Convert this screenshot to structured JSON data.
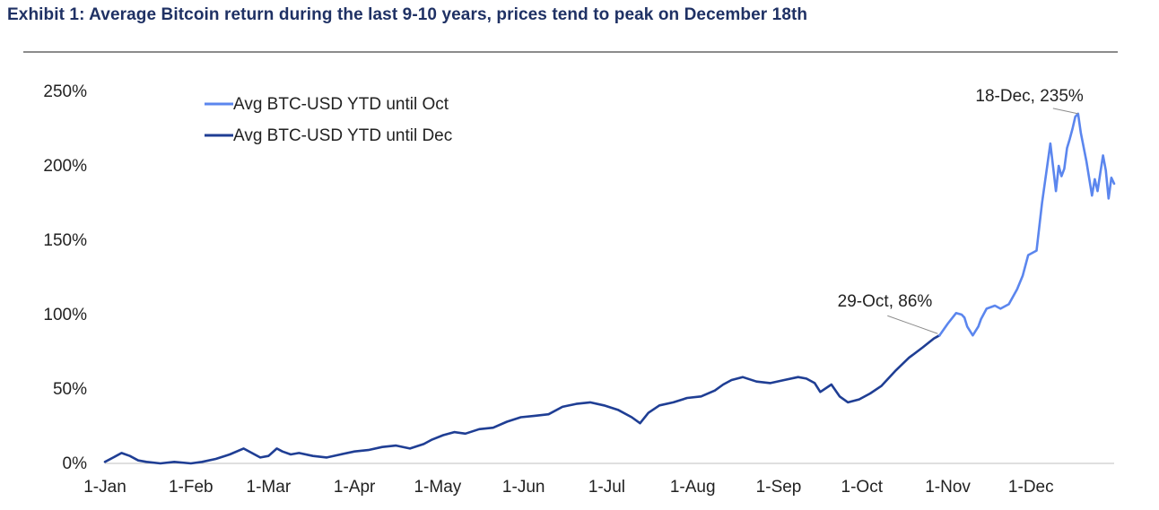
{
  "header": {
    "title": "Exhibit 1: Average Bitcoin return during the last 9-10 years, prices tend to peak on December 18th"
  },
  "chart_data": {
    "type": "line",
    "title": "Exhibit 1: Average Bitcoin return during the last 9-10 years, prices tend to peak on December 18th",
    "xlabel": "",
    "ylabel": "",
    "ylim": [
      0,
      250
    ],
    "y_ticks": [
      0,
      50,
      100,
      150,
      200,
      250
    ],
    "y_tick_labels": [
      "0%",
      "50%",
      "100%",
      "150%",
      "200%",
      "250%"
    ],
    "x_range_days": [
      0,
      364
    ],
    "x_ticks": [
      0,
      31,
      59,
      90,
      120,
      151,
      181,
      212,
      243,
      273,
      304,
      334
    ],
    "x_tick_labels": [
      "1-Jan",
      "1-Feb",
      "1-Mar",
      "1-Apr",
      "1-May",
      "1-Jun",
      "1-Jul",
      "1-Aug",
      "1-Sep",
      "1-Oct",
      "1-Nov",
      "1-Dec"
    ],
    "legend_position": "top-left",
    "series": [
      {
        "name": "Avg BTC-USD YTD until Dec",
        "color": "#1f3e94",
        "x": [
          0,
          3,
          6,
          9,
          12,
          15,
          20,
          25,
          31,
          35,
          40,
          45,
          50,
          53,
          56,
          59,
          62,
          64,
          67,
          70,
          75,
          80,
          85,
          90,
          95,
          100,
          105,
          110,
          115,
          118,
          122,
          126,
          130,
          135,
          140,
          145,
          150,
          155,
          160,
          165,
          170,
          175,
          180,
          185,
          190,
          193,
          196,
          200,
          205,
          210,
          215,
          220,
          223,
          226,
          230,
          235,
          240,
          245,
          250,
          253,
          256,
          258,
          262,
          265,
          268,
          272,
          276,
          280,
          285,
          290,
          295,
          299,
          301
        ],
        "y": [
          1,
          4,
          7,
          5,
          2,
          1,
          0,
          1,
          0,
          1,
          3,
          6,
          10,
          7,
          4,
          5,
          10,
          8,
          6,
          7,
          5,
          4,
          6,
          8,
          9,
          11,
          12,
          10,
          13,
          16,
          19,
          21,
          20,
          23,
          24,
          28,
          31,
          32,
          33,
          38,
          40,
          41,
          39,
          36,
          31,
          27,
          34,
          39,
          41,
          44,
          45,
          49,
          53,
          56,
          58,
          55,
          54,
          56,
          58,
          57,
          54,
          48,
          53,
          45,
          41,
          43,
          47,
          52,
          62,
          71,
          78,
          84,
          86
        ]
      },
      {
        "name": "Avg BTC-USD YTD until Oct",
        "color": "#5b86ee",
        "x": [
          301,
          304,
          307,
          309,
          310,
          311,
          313,
          315,
          316,
          318,
          321,
          323,
          326,
          329,
          331,
          333,
          336,
          338,
          341,
          343,
          344,
          345,
          346,
          347,
          348,
          349,
          350,
          351,
          352,
          354,
          356,
          357,
          358,
          359,
          360,
          361,
          362,
          363,
          364
        ],
        "y": [
          86,
          94,
          101,
          100,
          98,
          92,
          86,
          92,
          97,
          104,
          106,
          104,
          107,
          117,
          126,
          140,
          143,
          175,
          215,
          183,
          200,
          193,
          198,
          212,
          218,
          225,
          233,
          235,
          222,
          203,
          180,
          191,
          183,
          195,
          207,
          197,
          178,
          192,
          188
        ]
      }
    ],
    "annotations": [
      {
        "text": "18-Dec, 235%",
        "x": 351,
        "y": 235
      },
      {
        "text": "29-Oct, 86%",
        "x": 301,
        "y": 86
      }
    ]
  }
}
